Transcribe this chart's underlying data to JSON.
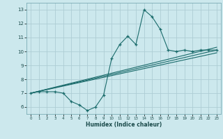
{
  "title": "",
  "xlabel": "Humidex (Indice chaleur)",
  "bg_color": "#cce8ed",
  "grid_color": "#aecdd4",
  "line_color": "#1a6b6b",
  "xlim": [
    -0.5,
    23.5
  ],
  "ylim": [
    5.5,
    13.5
  ],
  "yticks": [
    6,
    7,
    8,
    9,
    10,
    11,
    12,
    13
  ],
  "xticks": [
    0,
    1,
    2,
    3,
    4,
    5,
    6,
    7,
    8,
    9,
    10,
    11,
    12,
    13,
    14,
    15,
    16,
    17,
    18,
    19,
    20,
    21,
    22,
    23
  ],
  "main_x": [
    0,
    1,
    2,
    3,
    4,
    5,
    6,
    7,
    8,
    9,
    10,
    11,
    12,
    13,
    14,
    15,
    16,
    17,
    18,
    19,
    20,
    21,
    22,
    23
  ],
  "main_y": [
    7.0,
    7.1,
    7.1,
    7.1,
    7.0,
    6.4,
    6.15,
    5.75,
    6.0,
    6.85,
    9.5,
    10.5,
    11.1,
    10.5,
    13.0,
    12.5,
    11.6,
    10.1,
    10.0,
    10.1,
    10.0,
    10.1,
    10.1,
    10.1
  ],
  "line1_x": [
    0,
    23
  ],
  "line1_y": [
    7.0,
    10.1
  ],
  "line2_x": [
    0,
    23
  ],
  "line2_y": [
    7.0,
    10.3
  ],
  "line3_x": [
    0,
    23
  ],
  "line3_y": [
    7.0,
    9.9
  ]
}
